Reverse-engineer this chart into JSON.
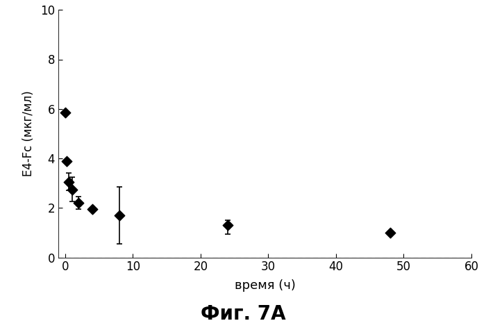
{
  "x": [
    0.0,
    0.25,
    0.5,
    1.0,
    2.0,
    4.0,
    8.0,
    24.0,
    48.0
  ],
  "y": [
    5.85,
    3.9,
    3.05,
    2.75,
    2.2,
    1.95,
    1.7,
    1.3,
    1.0
  ],
  "yerr_lower": [
    0.0,
    0.0,
    0.35,
    0.5,
    0.25,
    0.0,
    1.15,
    0.35,
    0.0
  ],
  "yerr_upper": [
    0.0,
    0.0,
    0.35,
    0.5,
    0.25,
    0.0,
    1.15,
    0.2,
    0.0
  ],
  "xlim": [
    -1,
    60
  ],
  "ylim": [
    0,
    10
  ],
  "xticks": [
    0,
    10,
    20,
    30,
    40,
    50,
    60
  ],
  "yticks": [
    0,
    2,
    4,
    6,
    8,
    10
  ],
  "xlabel": "время (ч)",
  "ylabel": "E4-Fc (мкг/мл)",
  "caption": "Фиг. 7A",
  "marker_color": "#000000",
  "background_color": "#ffffff",
  "xlabel_fontsize": 13,
  "ylabel_fontsize": 12,
  "caption_fontsize": 20,
  "tick_fontsize": 12
}
